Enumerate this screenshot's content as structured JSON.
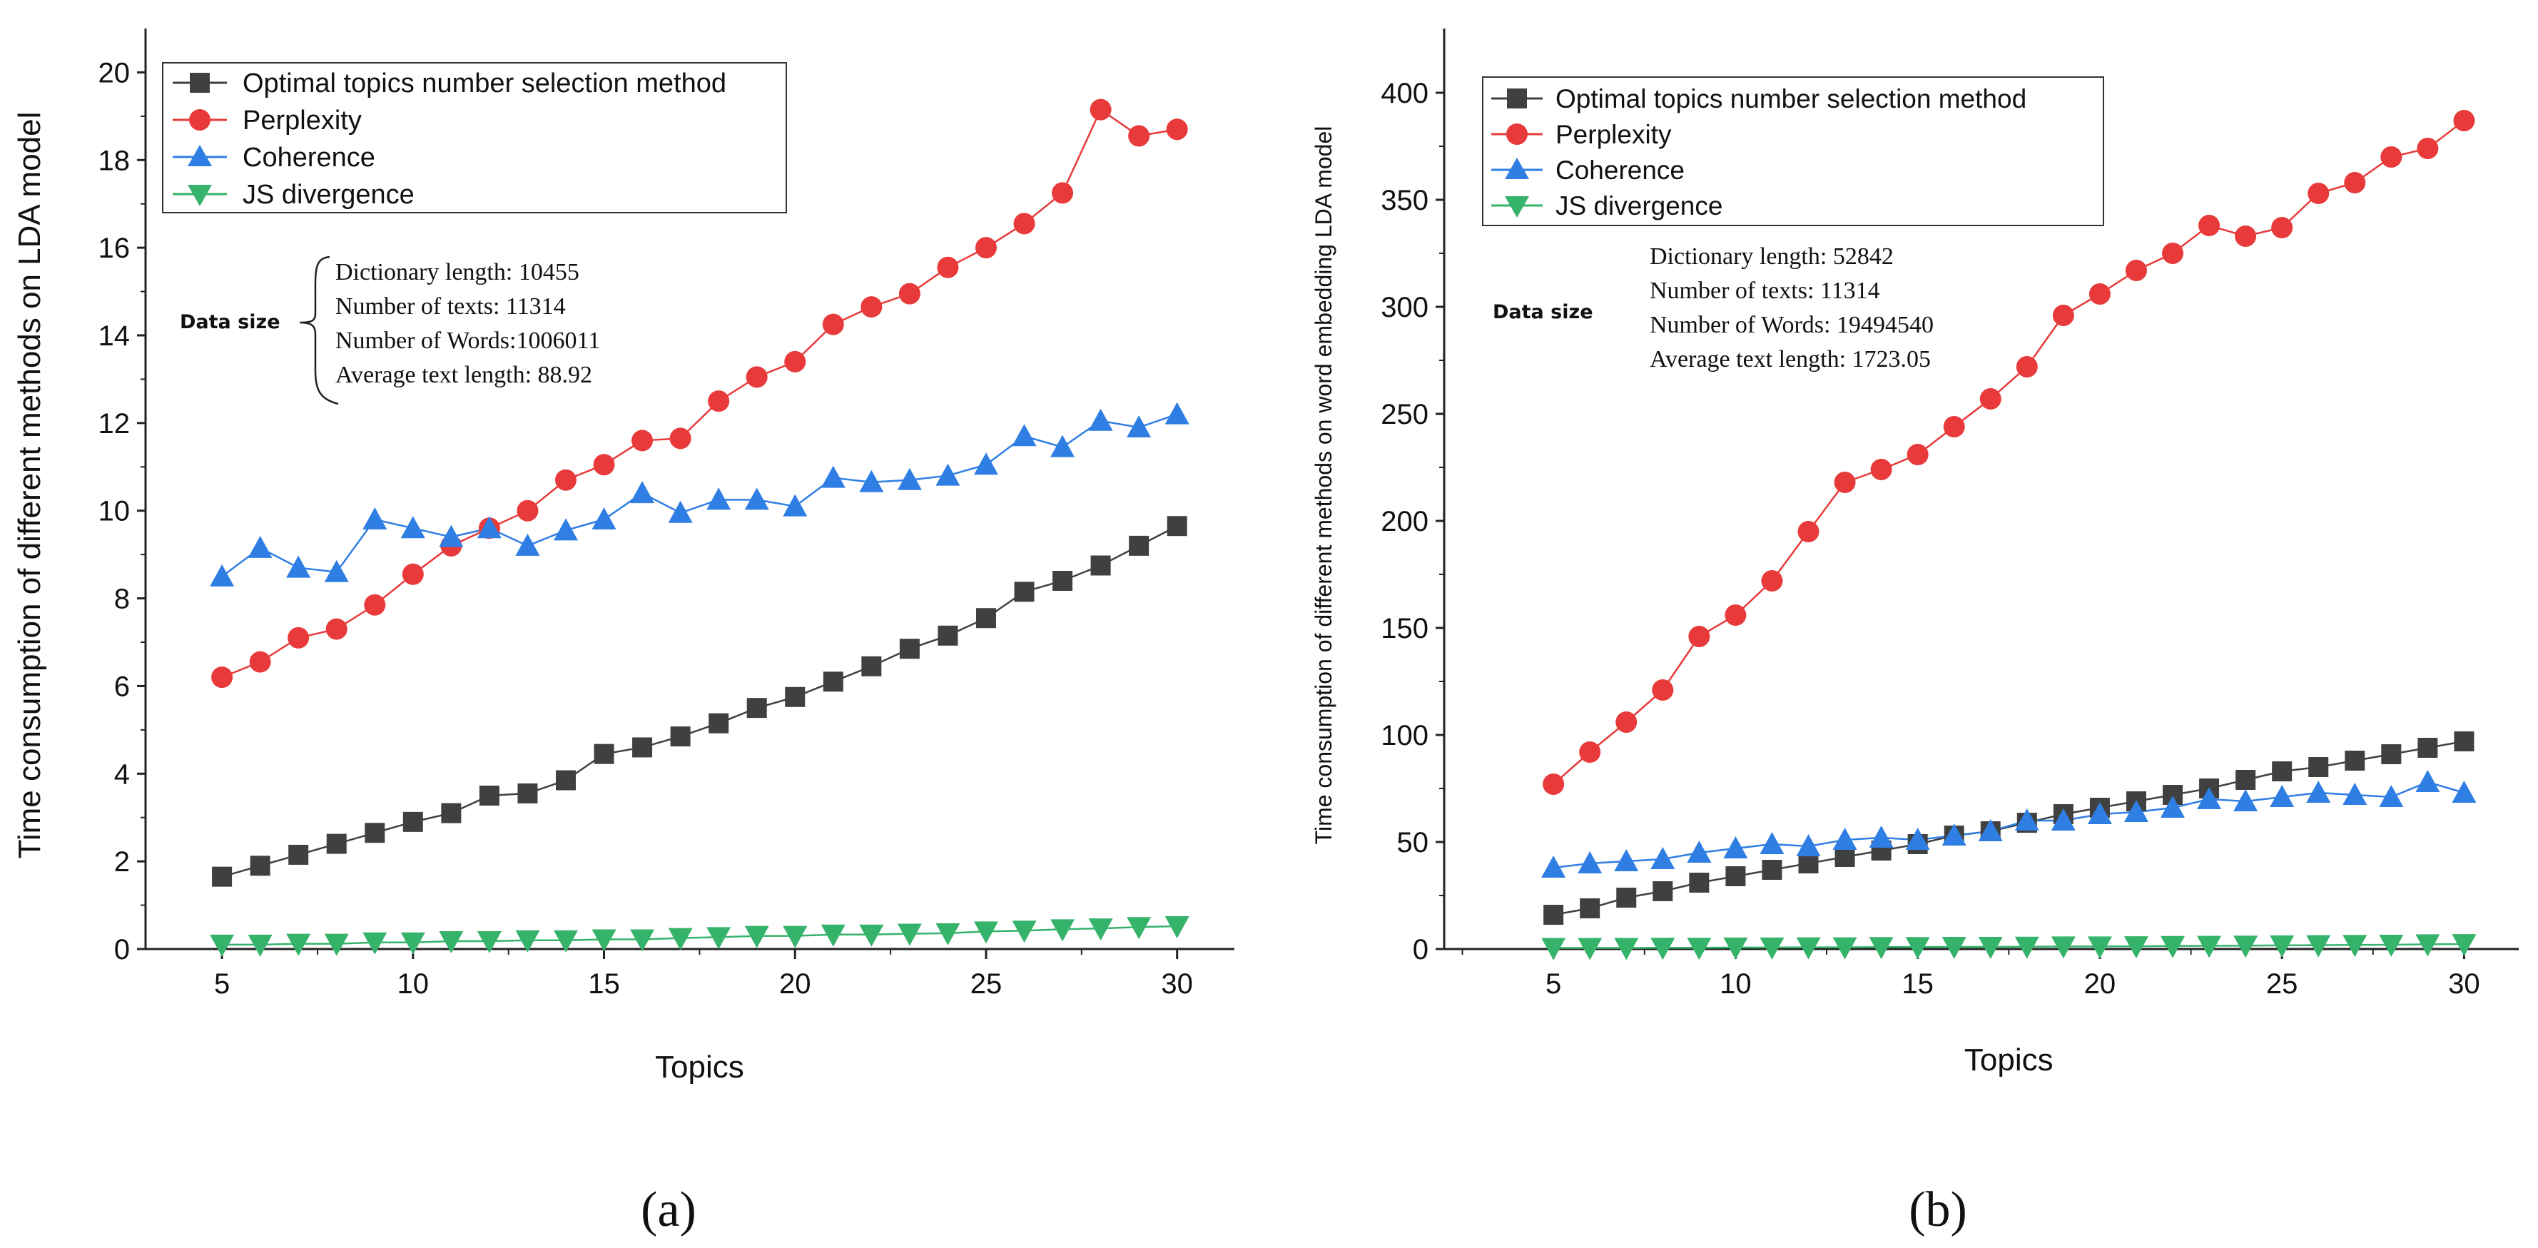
{
  "colors": {
    "optimal": "#404040",
    "perplexity": "#e83a3a",
    "coherence": "#2f7ee3",
    "js": "#36b36a"
  },
  "chart_data": [
    {
      "type": "line",
      "caption": "(a)",
      "xlabel": "Topics",
      "ylabel": "Time consumption of different methods on LDA model",
      "xlim": [
        3,
        31.5
      ],
      "ylim": [
        0,
        21
      ],
      "xticks": [
        5,
        10,
        15,
        20,
        25,
        30
      ],
      "yticks": [
        0,
        2,
        4,
        6,
        8,
        10,
        12,
        14,
        16,
        18,
        20
      ],
      "legend_position": "top-left",
      "grid": false,
      "x": [
        5,
        6,
        7,
        8,
        9,
        10,
        11,
        12,
        13,
        14,
        15,
        16,
        17,
        18,
        19,
        20,
        21,
        22,
        23,
        24,
        25,
        26,
        27,
        28,
        29,
        30
      ],
      "series": [
        {
          "name": "Optimal topics number selection method",
          "marker": "square",
          "color_key": "optimal",
          "values": [
            1.65,
            1.9,
            2.15,
            2.4,
            2.65,
            2.9,
            3.1,
            3.5,
            3.55,
            3.85,
            4.45,
            4.6,
            4.85,
            5.15,
            5.5,
            5.75,
            6.1,
            6.45,
            6.85,
            7.15,
            7.55,
            8.15,
            8.4,
            8.75,
            9.2,
            9.65
          ]
        },
        {
          "name": "Perplexity",
          "marker": "circle",
          "color_key": "perplexity",
          "values": [
            6.2,
            6.55,
            7.1,
            7.3,
            7.85,
            8.55,
            9.2,
            9.6,
            10.0,
            10.7,
            11.05,
            11.6,
            11.65,
            12.5,
            13.05,
            13.4,
            14.25,
            14.65,
            14.95,
            15.55,
            16.0,
            16.55,
            17.25,
            19.15,
            18.55,
            18.7
          ]
        },
        {
          "name": "Coherence",
          "marker": "triangle-up",
          "color_key": "coherence",
          "values": [
            8.5,
            9.15,
            8.7,
            8.6,
            9.8,
            9.6,
            9.4,
            9.6,
            9.2,
            9.55,
            9.8,
            10.4,
            9.95,
            10.25,
            10.25,
            10.1,
            10.75,
            10.65,
            10.7,
            10.8,
            11.05,
            11.7,
            11.45,
            12.05,
            11.9,
            12.2
          ]
        },
        {
          "name": "JS divergence",
          "marker": "triangle-down",
          "color_key": "js",
          "values": [
            0.1,
            0.1,
            0.12,
            0.12,
            0.15,
            0.15,
            0.18,
            0.18,
            0.2,
            0.2,
            0.22,
            0.22,
            0.25,
            0.27,
            0.3,
            0.3,
            0.33,
            0.33,
            0.35,
            0.36,
            0.4,
            0.42,
            0.45,
            0.47,
            0.5,
            0.52
          ]
        }
      ],
      "annotation": {
        "label": "Data size",
        "lines": [
          "Dictionary length: 10455",
          "Number of texts: 11314",
          "Number of Words:1006011",
          "Average text length: 88.92"
        ]
      }
    },
    {
      "type": "line",
      "caption": "(b)",
      "xlabel": "Topics",
      "ylabel": "Time consumption of different methods on word embedding LDA model",
      "xlim": [
        2,
        31.5
      ],
      "ylim": [
        0,
        430
      ],
      "xticks": [
        5,
        10,
        15,
        20,
        25,
        30
      ],
      "yticks": [
        0,
        50,
        100,
        150,
        200,
        250,
        300,
        350,
        400
      ],
      "legend_position": "top-left",
      "grid": false,
      "x": [
        5,
        6,
        7,
        8,
        9,
        10,
        11,
        12,
        13,
        14,
        15,
        16,
        17,
        18,
        19,
        20,
        21,
        22,
        23,
        24,
        25,
        26,
        27,
        28,
        29,
        30
      ],
      "series": [
        {
          "name": "Optimal topics number selection method",
          "marker": "square",
          "color_key": "optimal",
          "values": [
            16,
            19,
            24,
            27,
            31,
            34,
            37,
            40,
            43,
            46,
            49,
            53,
            55,
            59,
            63,
            66,
            69,
            72,
            75,
            79,
            83,
            85,
            88,
            91,
            94,
            97
          ]
        },
        {
          "name": "Perplexity",
          "marker": "circle",
          "color_key": "perplexity",
          "values": [
            77,
            92,
            106,
            121,
            146,
            156,
            172,
            195,
            218,
            224,
            231,
            244,
            257,
            272,
            296,
            306,
            317,
            325,
            338,
            333,
            337,
            353,
            358,
            370,
            374,
            387
          ]
        },
        {
          "name": "Coherence",
          "marker": "triangle-up",
          "color_key": "coherence",
          "values": [
            38,
            40,
            41,
            42,
            45,
            47,
            49,
            48,
            51,
            52,
            51,
            53,
            55,
            60,
            60,
            63,
            64,
            66,
            70,
            69,
            71,
            73,
            72,
            71,
            78,
            73
          ]
        },
        {
          "name": "JS divergence",
          "marker": "triangle-down",
          "color_key": "js",
          "values": [
            0.5,
            0.5,
            0.5,
            0.6,
            0.6,
            0.7,
            0.7,
            0.8,
            0.8,
            0.9,
            0.9,
            1.0,
            1.0,
            1.1,
            1.2,
            1.2,
            1.3,
            1.4,
            1.5,
            1.6,
            1.7,
            1.8,
            1.9,
            2.0,
            2.2,
            2.3
          ]
        }
      ],
      "annotation": {
        "label": "Data size",
        "lines": [
          "Dictionary length: 52842",
          "Number of texts: 11314",
          "Number of Words: 19494540",
          "Average text length: 1723.05"
        ]
      }
    }
  ]
}
